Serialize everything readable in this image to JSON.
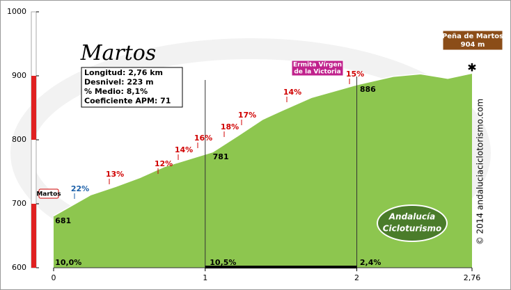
{
  "chart_data": {
    "type": "area",
    "title": "Martos",
    "info": [
      "Longitud: 2,76 km",
      "Desnivel: 223 m",
      "% Medio: 8,1%",
      "Coeficiente APM: 71"
    ],
    "x": [
      0,
      0.245,
      0.41,
      0.57,
      0.73,
      1.05,
      1.22,
      1.38,
      1.5,
      1.7,
      2.0,
      2.24,
      2.42,
      2.6,
      2.76
    ],
    "values": [
      681,
      714,
      727,
      741,
      758,
      781,
      807,
      832,
      845,
      866,
      886,
      899,
      903,
      896,
      904
    ],
    "color": "#8dc64f",
    "xlim": [
      0,
      2.76
    ],
    "xticks": [
      0,
      1,
      2,
      {
        "value": 2.76,
        "label": "2,76"
      }
    ],
    "ylim": [
      600,
      1000
    ],
    "yticks": [
      600,
      700,
      800,
      900,
      1000
    ],
    "start_label": "Martos",
    "summit_label": [
      "Peña de Martos",
      "904 m"
    ],
    "poi_label": [
      "Ermita Vírgen",
      "de la Victoria"
    ],
    "elevation_labels": [
      681,
      781,
      886
    ],
    "gradients": [
      "22%",
      "13%",
      "12%",
      "14%",
      "16%",
      "18%",
      "17%",
      "14%",
      "15%"
    ],
    "sections": [
      "10,0%",
      "10,5%",
      "2,4%"
    ],
    "copyright": "© 2014 andaluciaciclotorismo.com",
    "logo": [
      "Andalucía",
      "Cicloturismo"
    ]
  }
}
